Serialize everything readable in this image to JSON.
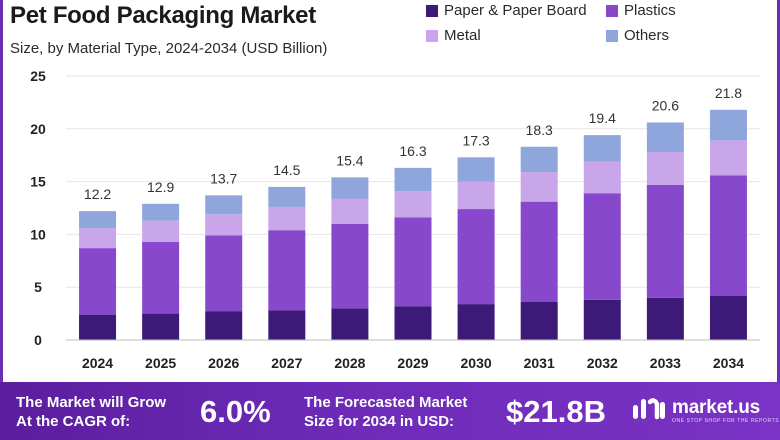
{
  "header": {
    "title": "Pet Food Packaging Market",
    "subtitle": "Size, by Material Type, 2024-2034 (USD Billion)"
  },
  "legend": [
    {
      "label": "Paper & Paper Board",
      "color": "#3d1a78"
    },
    {
      "label": "Plastics",
      "color": "#8848cc"
    },
    {
      "label": "Metal",
      "color": "#c9a6ea"
    },
    {
      "label": "Others",
      "color": "#8fa6dc"
    }
  ],
  "chart_data": {
    "type": "bar",
    "stacked": true,
    "title": "Pet Food Packaging Market",
    "subtitle": "Size, by Material Type, 2024-2034 (USD Billion)",
    "categories": [
      "2024",
      "2025",
      "2026",
      "2027",
      "2028",
      "2029",
      "2030",
      "2031",
      "2032",
      "2033",
      "2034"
    ],
    "series": [
      {
        "name": "Paper & Paper Board",
        "color": "#3d1a78",
        "values": [
          2.4,
          2.5,
          2.7,
          2.8,
          3.0,
          3.2,
          3.4,
          3.6,
          3.8,
          4.0,
          4.2
        ]
      },
      {
        "name": "Plastics",
        "color": "#8848cc",
        "values": [
          6.3,
          6.8,
          7.2,
          7.6,
          8.0,
          8.4,
          9.0,
          9.5,
          10.1,
          10.7,
          11.4
        ]
      },
      {
        "name": "Metal",
        "color": "#c9a6ea",
        "values": [
          1.9,
          2.0,
          2.0,
          2.2,
          2.4,
          2.5,
          2.6,
          2.8,
          3.0,
          3.1,
          3.3
        ]
      },
      {
        "name": "Others",
        "color": "#8fa6dc",
        "values": [
          1.6,
          1.6,
          1.8,
          1.9,
          2.0,
          2.2,
          2.3,
          2.4,
          2.5,
          2.8,
          2.9
        ]
      }
    ],
    "totals": [
      12.2,
      12.9,
      13.7,
      14.5,
      15.4,
      16.3,
      17.3,
      18.3,
      19.4,
      20.6,
      21.8
    ],
    "total_labels": [
      "12.2",
      "12.9",
      "13.7",
      "14.5",
      "15.4",
      "16.3",
      "17.3",
      "18.3",
      "19.4",
      "20.6",
      "21.8"
    ],
    "yticks": [
      0,
      5,
      10,
      15,
      20,
      25
    ],
    "ylim": [
      0,
      25
    ],
    "xlabel": "",
    "ylabel": "",
    "grid": true,
    "legend_position": "top-right"
  },
  "footer": {
    "cagr_line1": "The Market will Grow",
    "cagr_line2": "At the CAGR of:",
    "cagr_value": "6.0%",
    "forecast_line1": "The Forecasted Market",
    "forecast_line2": "Size for 2034 in USD:",
    "forecast_value": "$21.8B",
    "brand_name": "market.us",
    "brand_tagline": "ONE STOP SHOP FOR THE REPORTS"
  }
}
